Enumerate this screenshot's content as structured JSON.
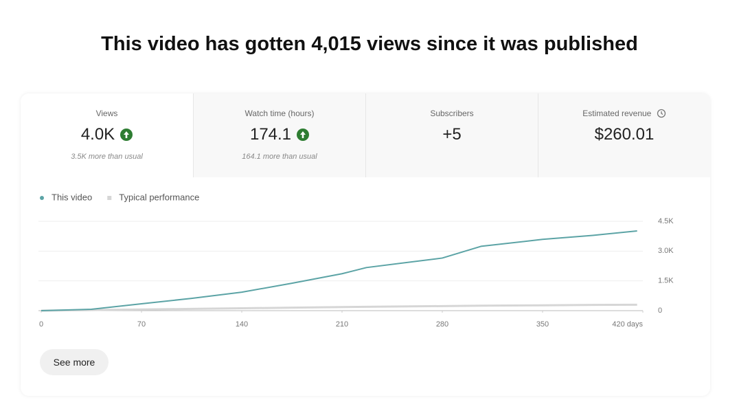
{
  "header": {
    "title": "This video has gotten 4,015 views since it was published"
  },
  "cards": [
    {
      "label": "Views",
      "value": "4.0K",
      "note": "3.5K more than usual"
    },
    {
      "label": "Watch time (hours)",
      "value": "174.1",
      "note": "164.1 more than usual"
    },
    {
      "label": "Subscribers",
      "value": "+5"
    },
    {
      "label": "Estimated revenue",
      "value": "$260.01"
    }
  ],
  "chart_data": {
    "type": "line",
    "x": [
      0,
      35,
      70,
      105,
      140,
      175,
      210,
      227,
      280,
      307,
      350,
      385,
      416
    ],
    "series": [
      {
        "name": "This video",
        "color": "#5ba3a5",
        "values": [
          0,
          70,
          345,
          620,
          930,
          1380,
          1860,
          2170,
          2650,
          3240,
          3590,
          3790,
          4015
        ]
      },
      {
        "name": "Typical performance",
        "color": "#d6d6d6",
        "values": [
          0,
          30,
          60,
          90,
          120,
          150,
          180,
          195,
          230,
          250,
          270,
          290,
          300
        ]
      }
    ],
    "xlim": [
      0,
      420
    ],
    "xticks": [
      0,
      70,
      140,
      210,
      280,
      350,
      {
        "value": 420,
        "label": "420 days"
      }
    ],
    "ylim": [
      0,
      4500
    ],
    "yticks": [
      0,
      {
        "value": 1500,
        "label": "1.5K"
      },
      {
        "value": 3000,
        "label": "3.0K"
      },
      {
        "value": 4500,
        "label": "4.5K"
      }
    ],
    "grid": true
  },
  "button": {
    "label": "See more"
  }
}
